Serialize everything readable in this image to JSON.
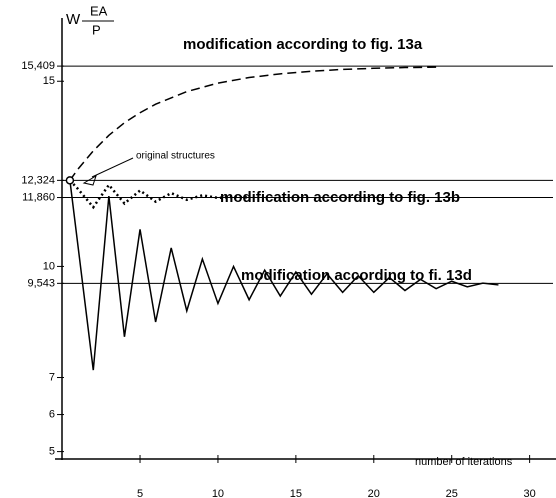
{
  "chart_data": {
    "type": "line",
    "y_label": {
      "symbol": "W",
      "numerator": "EA",
      "denominator": "P"
    },
    "x_label": "number of iterations",
    "annotation": "original structures",
    "xlim": [
      -0.2,
      31.5
    ],
    "ylim": [
      4.8,
      16.6
    ],
    "xticks": [
      5,
      10,
      15,
      20,
      25,
      30
    ],
    "yticks": [
      5,
      6,
      7,
      {
        "value": 9.543,
        "label": "9,543"
      },
      10,
      {
        "value": 11.86,
        "label": "11,860"
      },
      {
        "value": 12.324,
        "label": "12,324"
      },
      15,
      {
        "value": 15.409,
        "label": "15,409"
      }
    ],
    "series": [
      {
        "name": "modification according to fig. 13a",
        "color": "#000000",
        "style": "dashed",
        "x": [
          0.5,
          1,
          2,
          3,
          4,
          5,
          6,
          8,
          10,
          12,
          14,
          16,
          18,
          20,
          22,
          24
        ],
        "values": [
          12.324,
          12.62,
          13.12,
          13.54,
          13.88,
          14.15,
          14.38,
          14.72,
          14.95,
          15.1,
          15.2,
          15.27,
          15.32,
          15.35,
          15.37,
          15.38
        ]
      },
      {
        "name": "modification according to fig. 13b",
        "color": "#000000",
        "style": "dotted",
        "x": [
          0.5,
          1,
          2,
          3,
          4,
          5,
          6,
          7,
          8,
          9,
          10,
          11,
          12
        ],
        "values": [
          12.324,
          12.1,
          11.6,
          12.2,
          11.7,
          12.05,
          11.75,
          11.98,
          11.8,
          11.92,
          11.85,
          11.88,
          11.86
        ]
      },
      {
        "name": "modification according to fi. 13d",
        "color": "#000000",
        "style": "solid",
        "x": [
          0.5,
          2,
          3,
          4,
          5,
          6,
          7,
          8,
          9,
          10,
          11,
          12,
          13,
          14,
          15,
          16,
          17,
          18,
          19,
          20,
          21,
          22,
          23,
          24,
          25,
          26,
          27,
          28
        ],
        "values": [
          12.324,
          7.2,
          11.9,
          8.1,
          11.0,
          8.5,
          10.5,
          8.8,
          10.2,
          9.0,
          10.0,
          9.1,
          9.9,
          9.2,
          9.85,
          9.25,
          9.8,
          9.3,
          9.75,
          9.3,
          9.7,
          9.35,
          9.65,
          9.4,
          9.6,
          9.45,
          9.55,
          9.5
        ]
      }
    ]
  }
}
